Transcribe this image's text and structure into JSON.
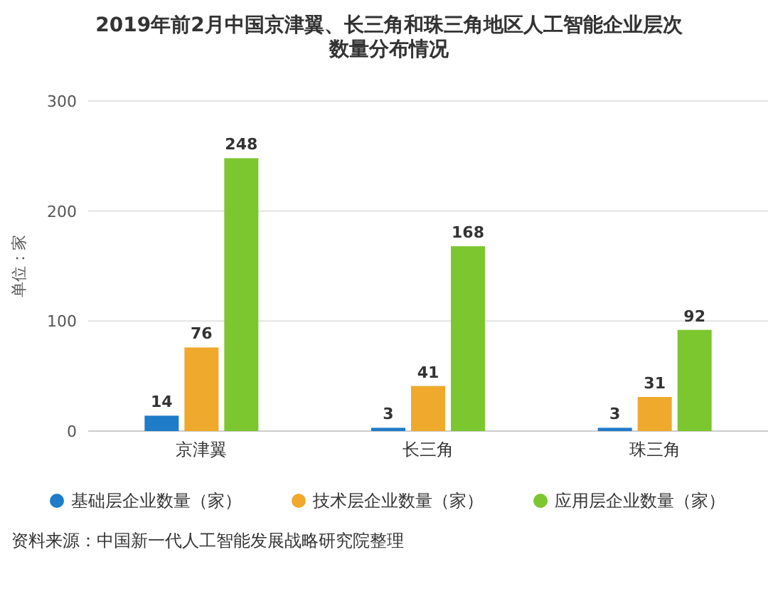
{
  "chart_data": {
    "type": "bar",
    "title": "2019年前2月中国京津翼、长三角和珠三角地区人工智能企业层次数量分布情况",
    "ylabel": "单位：家",
    "categories": [
      "京津翼",
      "长三角",
      "珠三角"
    ],
    "series": [
      {
        "name": "基础层企业数量（家）",
        "color": "#1f7cc8",
        "values": [
          14,
          3,
          3
        ]
      },
      {
        "name": "技术层企业数量（家）",
        "color": "#efa92c",
        "values": [
          76,
          41,
          31
        ]
      },
      {
        "name": "应用层企业数量（家）",
        "color": "#7cc72f",
        "values": [
          248,
          168,
          92
        ]
      }
    ],
    "ylim": [
      0,
      300
    ],
    "yticks": [
      0,
      100,
      200,
      300
    ],
    "grid": "y",
    "legend": "bottom",
    "data_labels": true,
    "annotations": [
      "资料来源：中国新一代人工智能发展战略研究院整理"
    ]
  }
}
